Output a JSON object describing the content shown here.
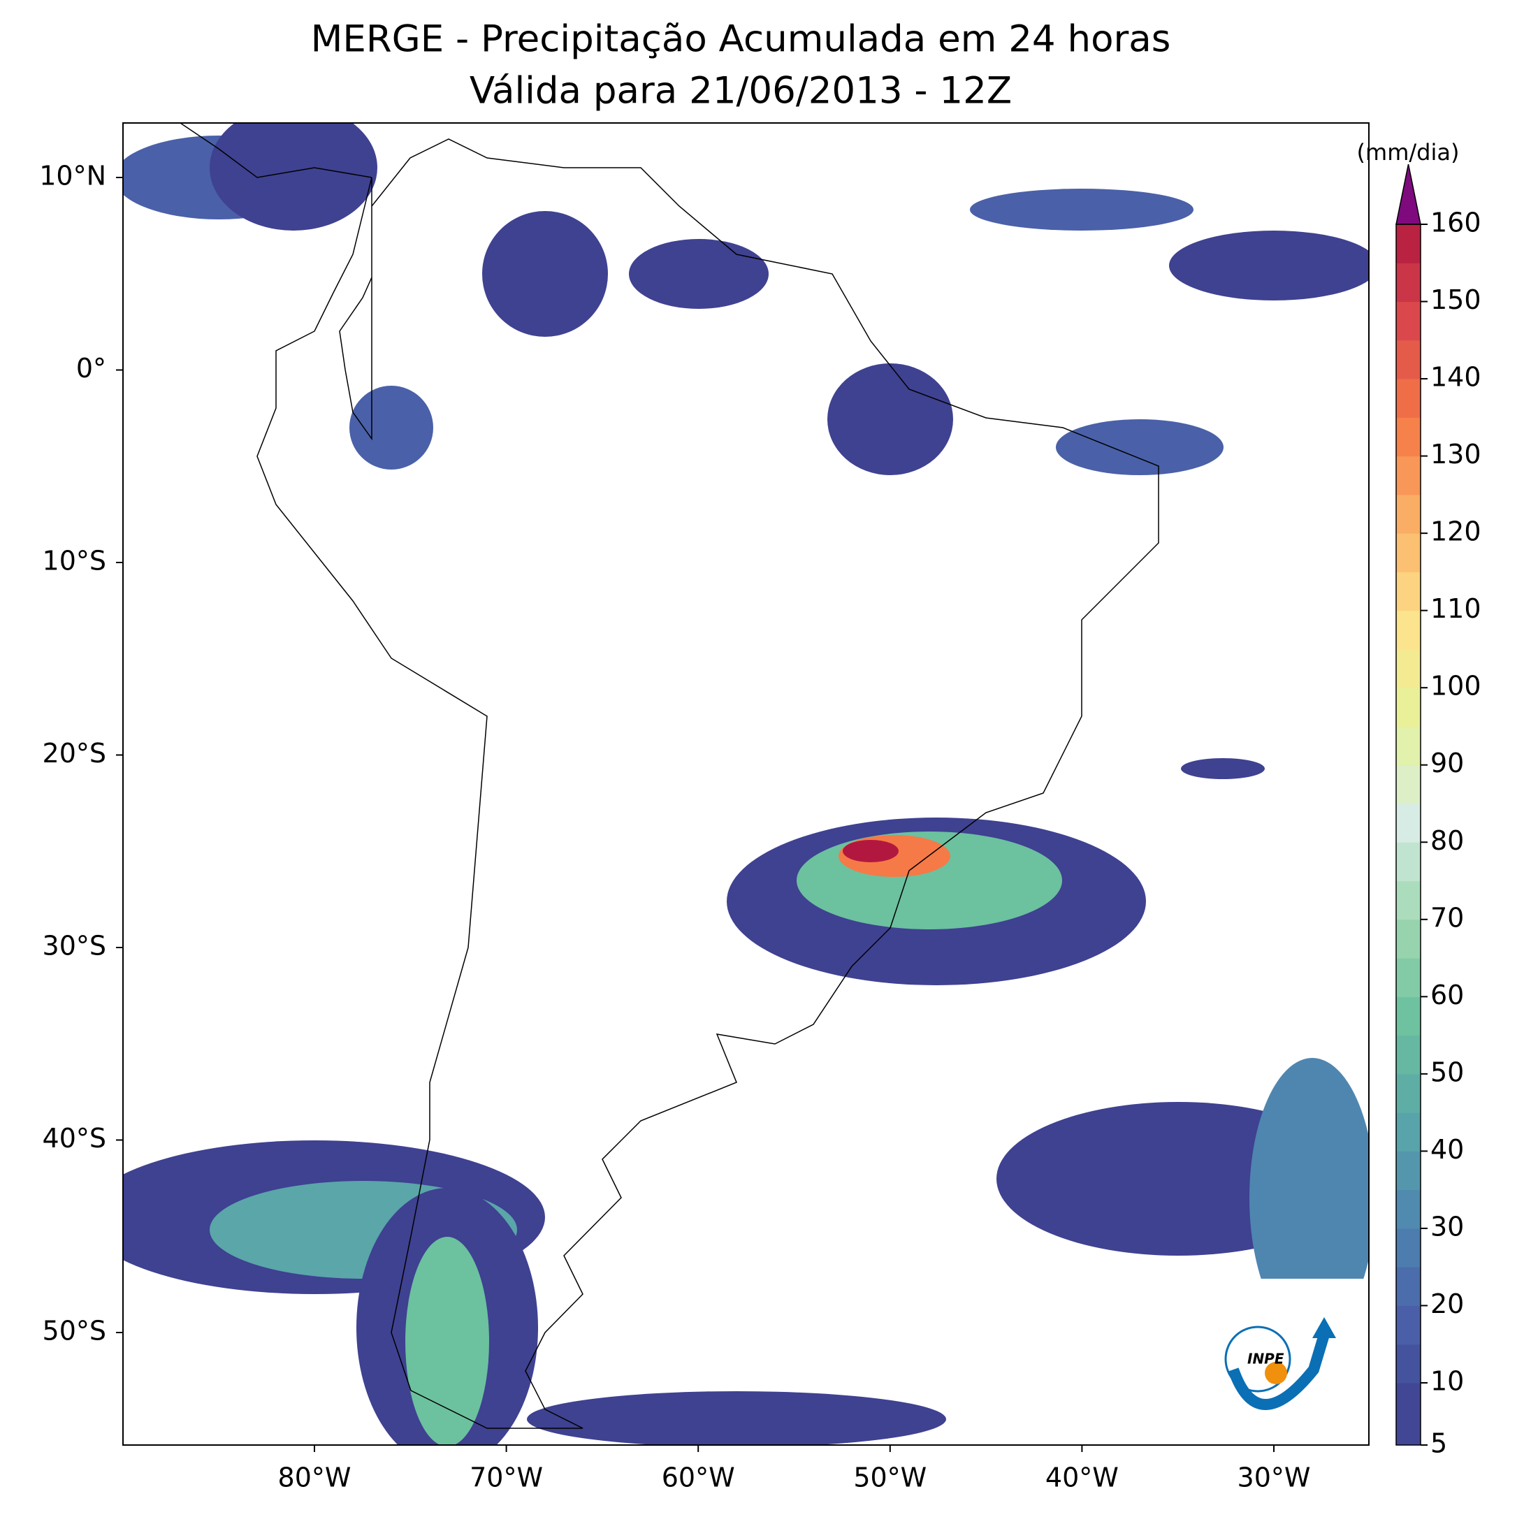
{
  "title": [
    "MERGE - Precipitação Acumulada em 24 horas",
    "Válida para 21/06/2013 - 12Z"
  ],
  "map": {
    "lon_ticks": [
      {
        "value": -80,
        "label": "80°W"
      },
      {
        "value": -70,
        "label": "70°W"
      },
      {
        "value": -60,
        "label": "60°W"
      },
      {
        "value": -50,
        "label": "50°W"
      },
      {
        "value": -40,
        "label": "40°W"
      },
      {
        "value": -30,
        "label": "30°W"
      }
    ],
    "lat_ticks": [
      {
        "value": 10,
        "label": "10°N"
      },
      {
        "value": 0,
        "label": "0°"
      },
      {
        "value": -10,
        "label": "10°S"
      },
      {
        "value": -20,
        "label": "20°S"
      },
      {
        "value": -30,
        "label": "30°S"
      },
      {
        "value": -40,
        "label": "40°S"
      },
      {
        "value": -50,
        "label": "50°S"
      }
    ]
  },
  "colorbar": {
    "label": "(mm/dia)",
    "ticks": [
      5,
      10,
      20,
      30,
      40,
      50,
      60,
      70,
      80,
      90,
      100,
      110,
      120,
      130,
      140,
      150,
      160
    ],
    "colors": [
      "#3f4191",
      "#4a60a8",
      "#4e86b0",
      "#5aa6a9",
      "#6cc19f",
      "#9fd8b1",
      "#d6ece4",
      "#e6f39a",
      "#fde28c",
      "#fbb267",
      "#f57a47",
      "#dc4a4c",
      "#b2183f"
    ],
    "over_color": "#7e0a7e"
  },
  "logo": {
    "text": "INPE"
  }
}
